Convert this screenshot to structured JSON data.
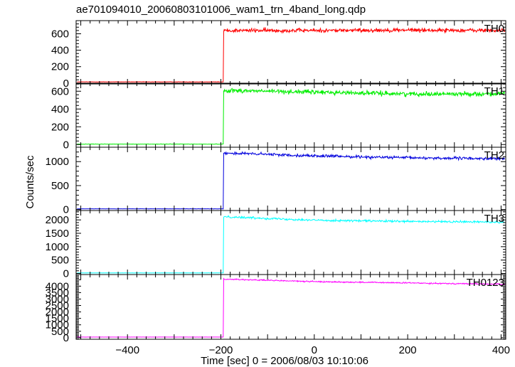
{
  "title": "ae701094010_20060803101006_wam1_trn_4band_long.qdp",
  "ylabel": "Counts/sec",
  "xlabel": "Time [sec] 0 = 2006/08/03 10:10:06",
  "chart_data": {
    "type": "line",
    "title": "ae701094010_20060803101006_wam1_trn_4band_long.qdp",
    "xlabel": "Time [sec] 0 = 2006/08/03 10:10:06",
    "ylabel": "Counts/sec",
    "xlim": [
      -510,
      410
    ],
    "x_ticks": [
      -400,
      -200,
      0,
      200,
      400
    ],
    "grid": false,
    "panels": [
      {
        "name": "TH0",
        "color": "#ff0000",
        "ylim": [
          -10,
          760
        ],
        "y_ticks": [
          0,
          200,
          400,
          600
        ],
        "pre_level": 15,
        "onset_time": -194,
        "post_points": [
          [
            -194,
            640
          ],
          [
            0,
            640
          ],
          [
            200,
            645
          ],
          [
            400,
            640
          ]
        ],
        "noise": 25
      },
      {
        "name": "TH1",
        "color": "#00ee00",
        "ylim": [
          -30,
          690
        ],
        "y_ticks": [
          0,
          200,
          400,
          600
        ],
        "pre_level": 5,
        "onset_time": -194,
        "post_points": [
          [
            -194,
            610
          ],
          [
            0,
            590
          ],
          [
            200,
            570
          ],
          [
            400,
            570
          ]
        ],
        "noise": 25
      },
      {
        "name": "TH2",
        "color": "#0000dd",
        "ylim": [
          -20,
          1300
        ],
        "y_ticks": [
          0,
          500,
          1000
        ],
        "pre_level": 15,
        "onset_time": -194,
        "post_points": [
          [
            -194,
            1180
          ],
          [
            0,
            1120
          ],
          [
            200,
            1080
          ],
          [
            400,
            1060
          ]
        ],
        "noise": 30
      },
      {
        "name": "TH3",
        "color": "#00ffff",
        "ylim": [
          -40,
          2350
        ],
        "y_ticks": [
          0,
          500,
          1000,
          1500,
          2000
        ],
        "pre_level": 20,
        "onset_time": -194,
        "post_points": [
          [
            -194,
            2120
          ],
          [
            0,
            1990
          ],
          [
            200,
            1940
          ],
          [
            400,
            1920
          ]
        ],
        "noise": 40
      },
      {
        "name": "TH0123",
        "color": "#ff00ff",
        "ylim": [
          -120,
          4900
        ],
        "y_ticks": [
          0,
          500,
          1000,
          1500,
          2000,
          2500,
          3000,
          3500,
          4000
        ],
        "pre_level": 50,
        "onset_time": -194,
        "post_points": [
          [
            -194,
            4550
          ],
          [
            0,
            4350
          ],
          [
            200,
            4250
          ],
          [
            400,
            4150
          ]
        ],
        "noise": 50
      }
    ]
  }
}
